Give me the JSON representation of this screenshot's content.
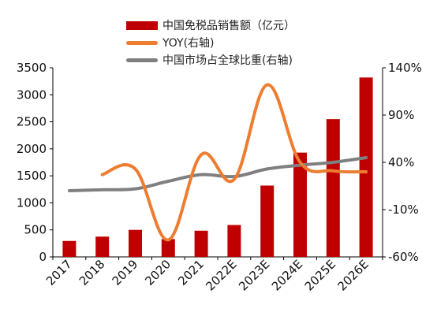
{
  "chart_data": {
    "type": "bar",
    "categories": [
      "2017",
      "2018",
      "2019",
      "2020",
      "2021",
      "2022E",
      "2023E",
      "2024E",
      "2025E",
      "2026E"
    ],
    "series": [
      {
        "name": "中国免税品销售额（亿元）",
        "type": "bar",
        "axis": "left",
        "color": "#c00000",
        "values": [
          295,
          375,
          500,
          330,
          485,
          590,
          1320,
          1930,
          2550,
          3320
        ]
      },
      {
        "name": "YOY(右轴)",
        "type": "line",
        "axis": "right",
        "color": "#ed7d31",
        "values": [
          null,
          27,
          33,
          -42,
          48,
          22,
          122,
          40,
          31,
          30
        ]
      },
      {
        "name": "中国市场占全球比重(右轴)",
        "type": "line",
        "axis": "right",
        "color": "#7f7f7f",
        "values": [
          10,
          11,
          12,
          20,
          27,
          25,
          33,
          37,
          40,
          45
        ]
      }
    ],
    "y_left": {
      "min": 0,
      "max": 3500,
      "ticks": [
        "0",
        "500",
        "1000",
        "1500",
        "2000",
        "2500",
        "3000",
        "3500"
      ]
    },
    "y_right": {
      "min": -60,
      "max": 140,
      "ticks": [
        "-60%",
        "-10%",
        "40%",
        "90%",
        "140%"
      ]
    },
    "grid": false,
    "legend_position": "top"
  }
}
